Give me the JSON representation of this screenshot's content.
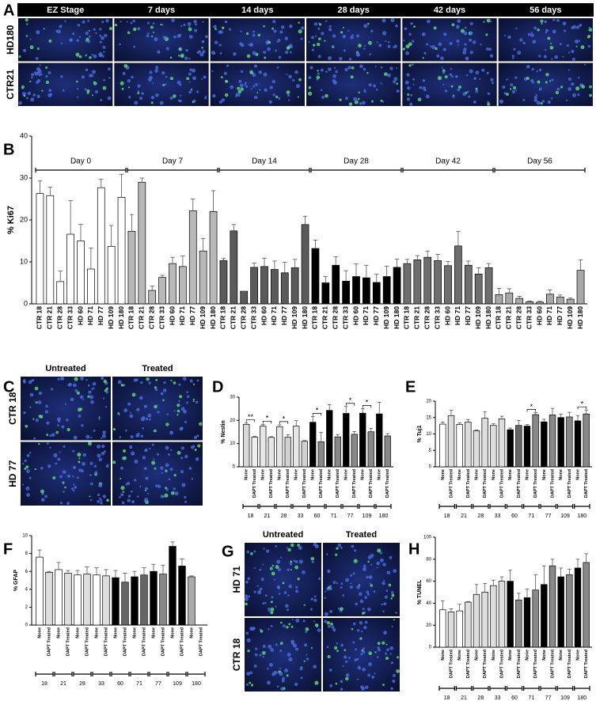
{
  "images": [
    {
      "panel": "A",
      "columns": [
        "EZ Stage",
        "7 days",
        "14 days",
        "28 days",
        "42 days",
        "56 days"
      ],
      "rows": [
        "HD180",
        "CTR21"
      ]
    },
    {
      "panel": "C",
      "columns": [
        "Untreated",
        "Treated"
      ],
      "rows": [
        "CTR 18",
        "HD 77"
      ]
    },
    {
      "panel": "G",
      "columns": [
        "Untreated",
        "Treated"
      ],
      "rows": [
        "HD 71",
        "CTR 18"
      ]
    }
  ],
  "chart_data": [
    {
      "type": "bar",
      "panel": "B",
      "ylabel": "% Ki67",
      "ylim": [
        0,
        40
      ],
      "yticks": [
        0,
        10,
        20,
        30,
        40
      ],
      "group_labels": "top",
      "categories": [
        "CTR 18",
        "CTR 21",
        "CTR 28",
        "CTR 33",
        "HD 60",
        "HD 71",
        "HD 77",
        "HD 109",
        "HD 180"
      ],
      "series": [
        {
          "name": "Day 0",
          "color": "#ffffff",
          "values": [
            26.3,
            25.8,
            5.3,
            16.6,
            15,
            8.3,
            27.7,
            13.7,
            25.4
          ],
          "errors": [
            3,
            2,
            2.5,
            8,
            4,
            5,
            2,
            5,
            5.5
          ]
        },
        {
          "name": "Day 7",
          "color": "#b8b8b8",
          "values": [
            17.3,
            29,
            3.2,
            6.3,
            9.6,
            8.9,
            22.2,
            12.6,
            22
          ],
          "errors": [
            4,
            1,
            1,
            0.5,
            1.5,
            2.5,
            2.8,
            3,
            5
          ]
        },
        {
          "name": "Day 14",
          "color": "#5a5a5a",
          "values": [
            10.3,
            17.4,
            3,
            8.7,
            8.9,
            8.2,
            7.4,
            8.6,
            18.9
          ],
          "errors": [
            0.5,
            1.5,
            0,
            1,
            2,
            2,
            2.5,
            2,
            2
          ]
        },
        {
          "name": "Day 28",
          "color": "#000000",
          "values": [
            13.2,
            5,
            9.2,
            5.4,
            6.5,
            6.2,
            5.1,
            6.5,
            8.7
          ],
          "errors": [
            2,
            1.5,
            2,
            2.5,
            3,
            3,
            2,
            2.5,
            2
          ]
        },
        {
          "name": "Day 42",
          "color": "#6e6e6e",
          "values": [
            9.6,
            10.5,
            11.1,
            10.3,
            9.1,
            13.8,
            9.2,
            7.1,
            8.6
          ],
          "errors": [
            1,
            1,
            1.5,
            1.5,
            1,
            3.5,
            1,
            1.5,
            1
          ]
        },
        {
          "name": "Day 56",
          "color": "#a8a8a8",
          "values": [
            2.2,
            2.6,
            1.3,
            0.5,
            0.4,
            2.3,
            1.6,
            1.1,
            8
          ],
          "errors": [
            1.5,
            1,
            0.5,
            0.2,
            0.2,
            1,
            0.5,
            0.3,
            2.5
          ]
        }
      ]
    },
    {
      "type": "bar",
      "panel": "D",
      "ylabel": "% Nestin",
      "ylim": [
        0,
        30
      ],
      "yticks": [
        0,
        10,
        20,
        30
      ],
      "group_labels": "bottom",
      "categories": [
        "None",
        "DAPT Treated"
      ],
      "series": [
        {
          "name": "18",
          "colors": [
            "#d9d9d9",
            "#eeeeee"
          ],
          "values": [
            18.3,
            12.8
          ],
          "errors": [
            0.6,
            0.3
          ],
          "annotation": "**"
        },
        {
          "name": "21",
          "colors": [
            "#e6e6e6",
            "#e6e6e6"
          ],
          "values": [
            17.5,
            12.7
          ],
          "errors": [
            0.8,
            0.3
          ],
          "annotation": "*"
        },
        {
          "name": "28",
          "colors": [
            "#e6e6e6",
            "#d0d0d0"
          ],
          "values": [
            17.3,
            12.8
          ],
          "errors": [
            0.8,
            1
          ],
          "annotation": "*"
        },
        {
          "name": "33",
          "colors": [
            "#e6e6e6",
            "#d0d0d0"
          ],
          "values": [
            17.5,
            11
          ],
          "errors": [
            2.5,
            0.3
          ]
        },
        {
          "name": "60",
          "colors": [
            "#000000",
            "#888888"
          ],
          "values": [
            19.2,
            10.8
          ],
          "errors": [
            2.5,
            4
          ],
          "annotation": "*"
        },
        {
          "name": "71",
          "colors": [
            "#000000",
            "#888888"
          ],
          "values": [
            24.3,
            12.9
          ],
          "errors": [
            2.5,
            1
          ]
        },
        {
          "name": "77",
          "colors": [
            "#000000",
            "#888888"
          ],
          "values": [
            23,
            14
          ],
          "errors": [
            3,
            1.2
          ],
          "annotation": "*"
        },
        {
          "name": "109",
          "colors": [
            "#000000",
            "#888888"
          ],
          "values": [
            23.1,
            15.1
          ],
          "errors": [
            2,
            1.5
          ],
          "annotation": "*"
        },
        {
          "name": "180",
          "colors": [
            "#000000",
            "#888888"
          ],
          "values": [
            22.8,
            13.3
          ],
          "errors": [
            5,
            1
          ]
        }
      ]
    },
    {
      "type": "bar",
      "panel": "E",
      "ylabel": "% Tuj1",
      "ylim": [
        0,
        20
      ],
      "yticks": [
        0,
        5,
        10,
        15,
        20
      ],
      "group_labels": "bottom",
      "categories": [
        "None",
        "DAPT Treated"
      ],
      "series": [
        {
          "name": "18",
          "colors": [
            "#ffffff",
            "#dddddd"
          ],
          "values": [
            13,
            15.6
          ],
          "errors": [
            0.6,
            1.6
          ]
        },
        {
          "name": "21",
          "colors": [
            "#ffffff",
            "#dddddd"
          ],
          "values": [
            12.9,
            13.6
          ],
          "errors": [
            0.5,
            0.8
          ]
        },
        {
          "name": "28",
          "colors": [
            "#dddddd",
            "#dddddd"
          ],
          "values": [
            11,
            14.8
          ],
          "errors": [
            0.2,
            2
          ]
        },
        {
          "name": "33",
          "colors": [
            "#dddddd",
            "#dddddd"
          ],
          "values": [
            12.6,
            14.6
          ],
          "errors": [
            0.5,
            0.8
          ]
        },
        {
          "name": "60",
          "colors": [
            "#000000",
            "#666666"
          ],
          "values": [
            11.3,
            12.6
          ],
          "errors": [
            0.5,
            1.5
          ]
        },
        {
          "name": "71",
          "colors": [
            "#000000",
            "#888888"
          ],
          "values": [
            12.4,
            15.9
          ],
          "errors": [
            0.5,
            0.6
          ],
          "annotation": "*"
        },
        {
          "name": "77",
          "colors": [
            "#000000",
            "#888888"
          ],
          "values": [
            13.7,
            15.8
          ],
          "errors": [
            0.8,
            2
          ]
        },
        {
          "name": "109",
          "colors": [
            "#000000",
            "#888888"
          ],
          "values": [
            15,
            15.2
          ],
          "errors": [
            1,
            1.4
          ]
        },
        {
          "name": "180",
          "colors": [
            "#000000",
            "#888888"
          ],
          "values": [
            14,
            16.1
          ],
          "errors": [
            1.6,
            1.2
          ],
          "annotation": "*"
        }
      ]
    },
    {
      "type": "bar",
      "panel": "F",
      "ylabel": "% GFAP",
      "ylim": [
        0,
        10
      ],
      "yticks": [
        0,
        2,
        4,
        6,
        8,
        10
      ],
      "group_labels": "bottom",
      "categories": [
        "None",
        "DAPT Treated"
      ],
      "series": [
        {
          "name": "18",
          "colors": [
            "#ffffff",
            "#dddddd"
          ],
          "values": [
            7.6,
            5.9
          ],
          "errors": [
            0.8,
            0.1
          ]
        },
        {
          "name": "21",
          "colors": [
            "#ffffff",
            "#dddddd"
          ],
          "values": [
            6.2,
            5.8
          ],
          "errors": [
            0.8,
            0.3
          ]
        },
        {
          "name": "28",
          "colors": [
            "#ffffff",
            "#dddddd"
          ],
          "values": [
            5.6,
            5.7
          ],
          "errors": [
            0.5,
            0.8
          ]
        },
        {
          "name": "33",
          "colors": [
            "#ffffff",
            "#dddddd"
          ],
          "values": [
            5.6,
            5.5
          ],
          "errors": [
            0.8,
            0.7
          ]
        },
        {
          "name": "60",
          "colors": [
            "#000000",
            "#666666"
          ],
          "values": [
            5.3,
            4.8
          ],
          "errors": [
            0.8,
            1
          ]
        },
        {
          "name": "71",
          "colors": [
            "#000000",
            "#666666"
          ],
          "values": [
            5.4,
            5.6
          ],
          "errors": [
            0.6,
            0.8
          ]
        },
        {
          "name": "77",
          "colors": [
            "#000000",
            "#888888"
          ],
          "values": [
            6,
            5.7
          ],
          "errors": [
            0.8,
            1
          ]
        },
        {
          "name": "109",
          "colors": [
            "#000000",
            "#000000"
          ],
          "values": [
            8.8,
            6.6
          ],
          "errors": [
            0.5,
            0.8
          ]
        },
        {
          "name": "180",
          "colors": [
            "#aaaaaa",
            "#aaaaaa"
          ],
          "values": [
            5.4,
            null
          ],
          "errors": [
            0.1,
            null
          ]
        }
      ]
    },
    {
      "type": "bar",
      "panel": "H",
      "ylabel": "% TUNEL",
      "ylim": [
        0,
        100
      ],
      "yticks": [
        0,
        20,
        40,
        60,
        80,
        100
      ],
      "group_labels": "bottom",
      "categories": [
        "None",
        "DAPT Treated"
      ],
      "series": [
        {
          "name": "18",
          "colors": [
            "#ffffff",
            "#dddddd"
          ],
          "values": [
            34,
            32
          ],
          "errors": [
            8,
            3
          ]
        },
        {
          "name": "21",
          "colors": [
            "#ffffff",
            "#dddddd"
          ],
          "values": [
            33,
            41
          ],
          "errors": [
            6,
            0.5
          ]
        },
        {
          "name": "28",
          "colors": [
            "#dddddd",
            "#dddddd"
          ],
          "values": [
            48,
            50
          ],
          "errors": [
            9,
            8
          ]
        },
        {
          "name": "33",
          "colors": [
            "#dddddd",
            "#dddddd"
          ],
          "values": [
            56,
            60
          ],
          "errors": [
            5,
            4
          ]
        },
        {
          "name": "60",
          "colors": [
            "#000000",
            "#888888"
          ],
          "values": [
            60,
            43
          ],
          "errors": [
            10,
            6
          ]
        },
        {
          "name": "71",
          "colors": [
            "#000000",
            "#888888"
          ],
          "values": [
            45,
            52
          ],
          "errors": [
            8,
            14
          ]
        },
        {
          "name": "77",
          "colors": [
            "#000000",
            "#888888"
          ],
          "values": [
            57,
            74
          ],
          "errors": [
            17,
            6
          ]
        },
        {
          "name": "109",
          "colors": [
            "#000000",
            "#888888"
          ],
          "values": [
            64,
            66
          ],
          "errors": [
            8,
            5
          ]
        },
        {
          "name": "180",
          "colors": [
            "#000000",
            "#888888"
          ],
          "values": [
            72,
            77
          ],
          "errors": [
            8,
            8
          ]
        }
      ]
    }
  ]
}
